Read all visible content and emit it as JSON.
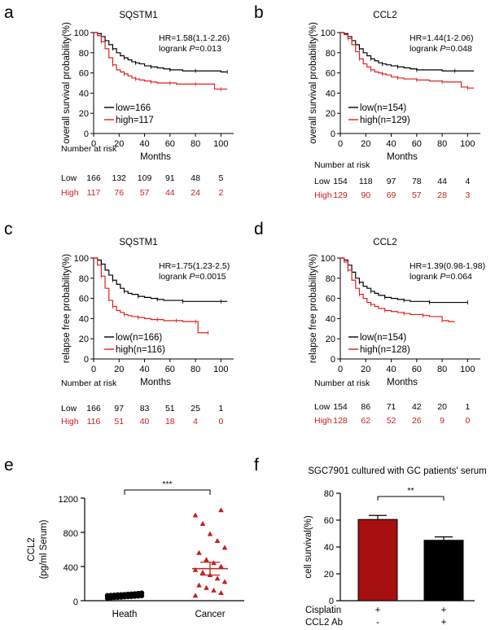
{
  "colors": {
    "low": "#000000",
    "high": "#e0201c",
    "high_text": "#c8201e",
    "bar_red": "#a50f0f",
    "bar_black": "#000000",
    "scatter_heath": "#000000",
    "scatter_cancer": "#c0201e"
  },
  "chart_data": [
    {
      "panel": "a",
      "type": "line",
      "title": "SQSTM1",
      "xlabel": "Months",
      "ylabel": "overall survival probability(%)",
      "xlim": [
        0,
        110
      ],
      "ylim": [
        0,
        100
      ],
      "xticks": [
        0,
        20,
        40,
        60,
        80,
        100
      ],
      "yticks": [
        0,
        20,
        40,
        60,
        80,
        100
      ],
      "stat_hr": "HR=1.58(1.1-2.26)",
      "stat_p_prefix": "logrank ",
      "stat_p_italic": "P",
      "stat_p_value": "=0.013",
      "series": [
        {
          "name": "low=166",
          "x": [
            0,
            3,
            6,
            9,
            12,
            15,
            18,
            21,
            24,
            27,
            30,
            33,
            36,
            40,
            45,
            50,
            55,
            60,
            65,
            70,
            80,
            90,
            100,
            105
          ],
          "values": [
            100,
            99,
            96,
            92,
            88,
            84,
            80,
            77,
            75,
            73,
            71,
            70,
            69,
            67,
            66,
            65,
            64,
            63,
            63,
            62,
            62,
            62,
            61,
            61
          ]
        },
        {
          "name": "high=117",
          "x": [
            0,
            3,
            6,
            9,
            12,
            15,
            18,
            21,
            24,
            27,
            30,
            33,
            36,
            40,
            45,
            50,
            55,
            60,
            65,
            70,
            80,
            90,
            95,
            100,
            105
          ],
          "values": [
            100,
            97,
            91,
            84,
            75,
            68,
            63,
            61,
            59,
            57,
            55,
            54,
            53,
            52,
            51,
            50,
            50,
            50,
            49,
            49,
            49,
            49,
            44,
            44,
            44
          ]
        }
      ],
      "risk_header": "Number at risk",
      "risk_low_label": "Low",
      "risk_low": [
        "166",
        "132",
        "109",
        "91",
        "48",
        "5"
      ],
      "risk_high_label": "High",
      "risk_high": [
        "117",
        "76",
        "57",
        "44",
        "24",
        "2"
      ]
    },
    {
      "panel": "b",
      "type": "line",
      "title": "CCL2",
      "xlabel": "Months",
      "ylabel": "overall survival probability(%)",
      "xlim": [
        0,
        110
      ],
      "ylim": [
        0,
        100
      ],
      "xticks": [
        0,
        20,
        40,
        60,
        80,
        100
      ],
      "yticks": [
        0,
        20,
        40,
        60,
        80,
        100
      ],
      "stat_hr": "HR=1.44(1-2.06)",
      "stat_p_prefix": "logrank ",
      "stat_p_italic": "P",
      "stat_p_value": "=0.048",
      "series": [
        {
          "name": "low(n=154)",
          "x": [
            0,
            3,
            6,
            9,
            12,
            15,
            18,
            21,
            24,
            27,
            30,
            33,
            36,
            40,
            45,
            50,
            55,
            60,
            70,
            80,
            90,
            100,
            105
          ],
          "values": [
            100,
            99,
            96,
            92,
            88,
            84,
            80,
            77,
            74,
            72,
            70,
            69,
            68,
            67,
            66,
            65,
            64,
            63,
            63,
            62,
            62,
            62,
            62
          ]
        },
        {
          "name": "high(n=129)",
          "x": [
            0,
            3,
            6,
            9,
            12,
            15,
            18,
            21,
            24,
            27,
            30,
            33,
            36,
            40,
            45,
            50,
            55,
            60,
            65,
            70,
            80,
            90,
            95,
            100,
            105
          ],
          "values": [
            100,
            98,
            94,
            88,
            81,
            74,
            69,
            66,
            63,
            61,
            60,
            59,
            58,
            56,
            55,
            54,
            54,
            53,
            53,
            52,
            51,
            51,
            46,
            45,
            45
          ]
        }
      ],
      "risk_header": "Number at risk",
      "risk_low_label": "Low",
      "risk_low": [
        "154",
        "118",
        "97",
        "78",
        "44",
        "4"
      ],
      "risk_high_label": "High",
      "risk_high": [
        "129",
        "90",
        "69",
        "57",
        "28",
        "3"
      ]
    },
    {
      "panel": "c",
      "type": "line",
      "title": "SQSTM1",
      "xlabel": "Months",
      "ylabel": "relapse free probability(%)",
      "xlim": [
        0,
        110
      ],
      "ylim": [
        0,
        100
      ],
      "xticks": [
        0,
        20,
        40,
        60,
        80,
        100
      ],
      "yticks": [
        0,
        20,
        40,
        60,
        80,
        100
      ],
      "stat_hr": "HR=1.75(1.23-2.5)",
      "stat_p_prefix": "logrank ",
      "stat_p_italic": "P",
      "stat_p_value": "=0.0015",
      "series": [
        {
          "name": "low(n=166)",
          "x": [
            0,
            3,
            6,
            9,
            12,
            15,
            18,
            21,
            24,
            27,
            30,
            35,
            40,
            45,
            50,
            55,
            60,
            70,
            80,
            90,
            100,
            105
          ],
          "values": [
            100,
            98,
            94,
            88,
            83,
            78,
            74,
            70,
            67,
            65,
            64,
            62,
            61,
            60,
            59,
            58,
            58,
            57,
            57,
            57,
            57,
            57
          ]
        },
        {
          "name": "high(n=116)",
          "x": [
            0,
            3,
            6,
            9,
            12,
            15,
            18,
            21,
            24,
            27,
            30,
            35,
            40,
            45,
            50,
            55,
            60,
            65,
            70,
            75,
            80,
            82,
            88,
            90
          ],
          "values": [
            100,
            93,
            82,
            70,
            58,
            52,
            48,
            46,
            44,
            43,
            42,
            41,
            40,
            39,
            39,
            38,
            38,
            38,
            37,
            37,
            37,
            26,
            26,
            26
          ]
        }
      ],
      "risk_header": "Number at risk",
      "risk_low_label": "Low",
      "risk_low": [
        "166",
        "97",
        "83",
        "51",
        "25",
        "1"
      ],
      "risk_high_label": "High",
      "risk_high": [
        "116",
        "51",
        "40",
        "18",
        "4",
        "0"
      ]
    },
    {
      "panel": "d",
      "type": "line",
      "title": "CCL2",
      "xlabel": "Months",
      "ylabel": "relapse free probability(%)",
      "xlim": [
        0,
        110
      ],
      "ylim": [
        0,
        100
      ],
      "xticks": [
        0,
        20,
        40,
        60,
        80,
        100
      ],
      "yticks": [
        0,
        20,
        40,
        60,
        80,
        100
      ],
      "stat_hr": "HR=1.39(0.98-1.98)",
      "stat_p_prefix": "logrank ",
      "stat_p_italic": "P",
      "stat_p_value": "=0.064",
      "series": [
        {
          "name": "low(n=154)",
          "x": [
            0,
            3,
            6,
            9,
            12,
            15,
            18,
            21,
            24,
            27,
            30,
            35,
            40,
            45,
            50,
            55,
            60,
            70,
            80,
            90,
            100
          ],
          "values": [
            100,
            98,
            93,
            86,
            80,
            76,
            72,
            70,
            67,
            65,
            63,
            61,
            60,
            59,
            58,
            57,
            57,
            56,
            56,
            56,
            56
          ]
        },
        {
          "name": "high(n=128)",
          "x": [
            0,
            3,
            6,
            9,
            12,
            15,
            18,
            21,
            24,
            27,
            30,
            35,
            40,
            45,
            50,
            55,
            60,
            65,
            70,
            75,
            80,
            85,
            90
          ],
          "values": [
            100,
            96,
            88,
            78,
            70,
            64,
            60,
            56,
            54,
            52,
            50,
            48,
            47,
            46,
            45,
            44,
            44,
            43,
            42,
            42,
            38,
            37,
            37
          ]
        }
      ],
      "risk_header": "Number at risk",
      "risk_low_label": "Low",
      "risk_low": [
        "154",
        "86",
        "71",
        "42",
        "20",
        "1"
      ],
      "risk_high_label": "High",
      "risk_high": [
        "128",
        "62",
        "52",
        "26",
        "9",
        "0"
      ]
    },
    {
      "panel": "e",
      "type": "scatter",
      "ylabel_line1": "CCL2",
      "ylabel_line2": "(pg/ml Serum)",
      "ylim": [
        0,
        1200
      ],
      "yticks": [
        0,
        400,
        800,
        1200
      ],
      "categories": [
        "Heath",
        "Cancer"
      ],
      "significance": "***",
      "groups": [
        {
          "name": "Heath",
          "mean": 60,
          "sem": 8,
          "values": [
            30,
            35,
            38,
            40,
            42,
            45,
            48,
            50,
            52,
            55,
            58,
            60,
            62,
            65,
            68,
            70,
            72,
            75,
            78,
            80,
            85,
            90
          ]
        },
        {
          "name": "Cancer",
          "mean": 375,
          "sem": 75,
          "values": [
            60,
            90,
            120,
            150,
            180,
            220,
            260,
            300,
            330,
            360,
            400,
            440,
            480,
            560,
            620,
            700,
            780,
            900,
            1000,
            1060
          ]
        }
      ]
    },
    {
      "panel": "f",
      "type": "bar",
      "title": "SGC7901 cultured with GC patients' serum",
      "ylabel": "cell survival(%)",
      "ylim": [
        0,
        80
      ],
      "yticks": [
        0,
        20,
        40,
        60,
        80
      ],
      "values": [
        60.5,
        45
      ],
      "errors": [
        3,
        2.5
      ],
      "significance": "**",
      "treatments": [
        {
          "label": "Cisplatin",
          "values": [
            "+",
            "+"
          ]
        },
        {
          "label": "CCL2 Ab",
          "values": [
            "-",
            "+"
          ]
        }
      ]
    }
  ]
}
